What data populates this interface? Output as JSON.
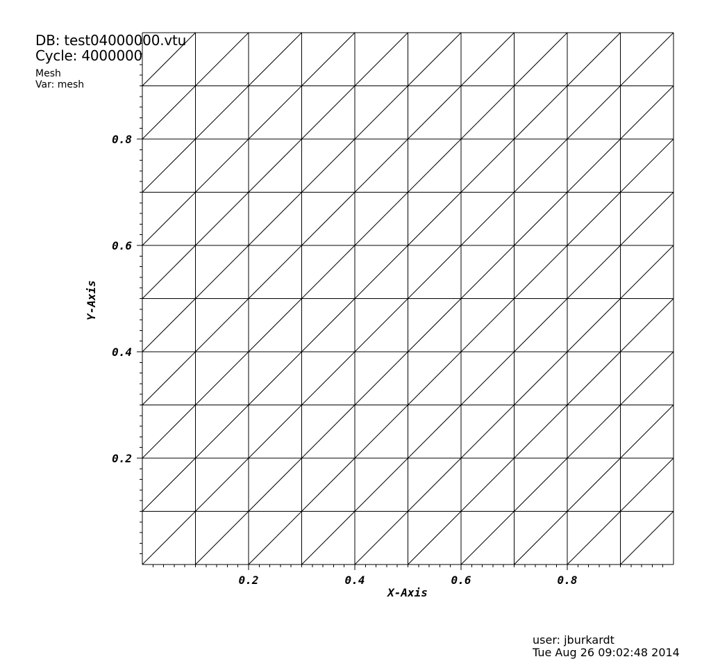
{
  "header": {
    "db_line": "DB: test04000000.vtu",
    "cycle_line": "Cycle: 4000000",
    "plot_name": "Mesh",
    "var_line": "Var: mesh"
  },
  "footer": {
    "user_line": "user: jburkardt",
    "date_line": "Tue Aug 26 09:02:48 2014"
  },
  "chart_data": {
    "type": "mesh",
    "xlabel": "X-Axis",
    "ylabel": "Y-Axis",
    "xlim": [
      0,
      1
    ],
    "ylim": [
      0,
      1
    ],
    "x_ticks": [
      0.2,
      0.4,
      0.6,
      0.8
    ],
    "y_ticks": [
      0.2,
      0.4,
      0.6,
      0.8
    ],
    "x_tick_labels": [
      "0.2",
      "0.4",
      "0.6",
      "0.8"
    ],
    "y_tick_labels": [
      "0.2",
      "0.4",
      "0.6",
      "0.8"
    ],
    "divisions": 10,
    "diagonal": "bottom-left to top-right"
  }
}
